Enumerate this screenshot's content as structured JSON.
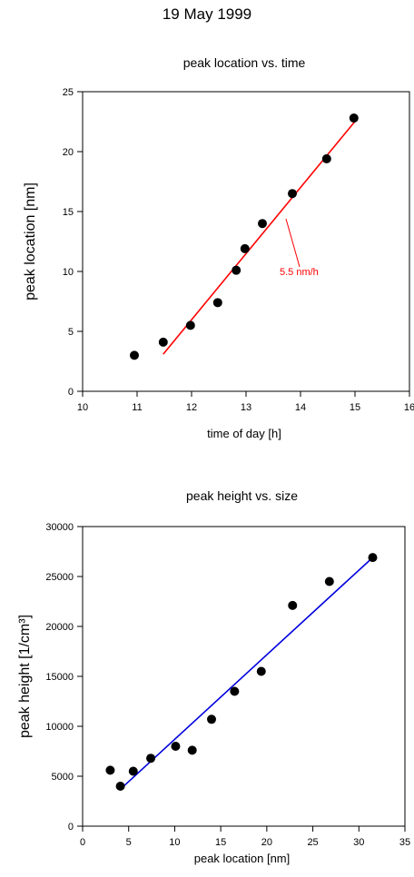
{
  "page_title": "19 May 1999",
  "chart_data": [
    {
      "type": "scatter",
      "title": "peak location vs. time",
      "xlabel": "time of day [h]",
      "ylabel": "peak location [nm]",
      "xlim": [
        10,
        16
      ],
      "ylim": [
        0,
        25
      ],
      "xticks": [
        10,
        11,
        12,
        13,
        14,
        15,
        16
      ],
      "yticks": [
        0,
        5,
        10,
        15,
        20,
        25
      ],
      "points": [
        {
          "x": 10.95,
          "y": 3.0
        },
        {
          "x": 11.48,
          "y": 4.1
        },
        {
          "x": 11.98,
          "y": 5.5
        },
        {
          "x": 12.48,
          "y": 7.4
        },
        {
          "x": 12.82,
          "y": 10.1
        },
        {
          "x": 12.98,
          "y": 11.9
        },
        {
          "x": 13.3,
          "y": 14.0
        },
        {
          "x": 13.85,
          "y": 16.5
        },
        {
          "x": 14.48,
          "y": 19.4
        },
        {
          "x": 14.98,
          "y": 22.8
        }
      ],
      "fit_line": {
        "x": [
          11.48,
          15.05
        ],
        "y": [
          3.1,
          22.8
        ],
        "color": "#ff0000"
      },
      "annotation": {
        "text": "5.5 nm/h",
        "color": "#ff0000"
      },
      "grid": false
    },
    {
      "type": "scatter",
      "title": "peak height vs. size",
      "xlabel": "peak location [nm]",
      "ylabel": "peak height [1/cm³]",
      "xlim": [
        0,
        35
      ],
      "ylim": [
        0,
        30000
      ],
      "xticks": [
        0,
        5,
        10,
        15,
        20,
        25,
        30,
        35
      ],
      "yticks": [
        0,
        5000,
        10000,
        15000,
        20000,
        25000,
        30000
      ],
      "points": [
        {
          "x": 3.0,
          "y": 5600
        },
        {
          "x": 4.1,
          "y": 4000
        },
        {
          "x": 5.5,
          "y": 5500
        },
        {
          "x": 7.4,
          "y": 6800
        },
        {
          "x": 10.1,
          "y": 8000
        },
        {
          "x": 11.9,
          "y": 7600
        },
        {
          "x": 14.0,
          "y": 10700
        },
        {
          "x": 16.5,
          "y": 13500
        },
        {
          "x": 19.4,
          "y": 15500
        },
        {
          "x": 22.8,
          "y": 22100
        },
        {
          "x": 26.8,
          "y": 24500
        },
        {
          "x": 31.5,
          "y": 26900
        }
      ],
      "fit_line": {
        "x": [
          4.1,
          31.5
        ],
        "y": [
          3700,
          26900
        ],
        "color": "#0000dd"
      },
      "grid": false
    }
  ]
}
